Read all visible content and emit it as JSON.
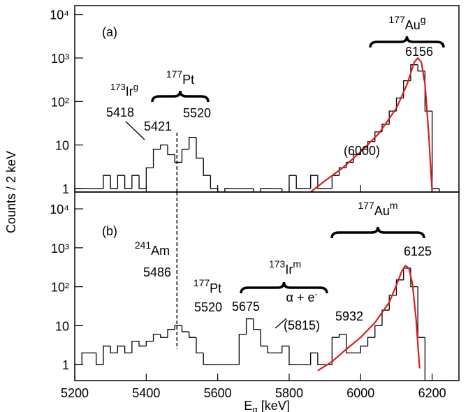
{
  "chart_data": [
    {
      "type": "histogram",
      "panel_label": "(a)",
      "ylabel": "Counts / 2 keV",
      "log_y": true,
      "color": "#000000",
      "xlim": [
        5200,
        6275
      ],
      "ylim": [
        0.83,
        16000
      ],
      "yticks": [
        1,
        10,
        {
          "value": 100,
          "label": "10²"
        },
        {
          "value": 1000,
          "label": "10³"
        },
        {
          "value": 10000,
          "label": "10⁴"
        }
      ],
      "bins": [
        5200,
        5220,
        5240,
        5260,
        5280,
        5300,
        5320,
        5340,
        5360,
        5380,
        5400,
        5420,
        5440,
        5460,
        5480,
        5500,
        5520,
        5540,
        5560,
        5580,
        5600,
        5620,
        5640,
        5660,
        5680,
        5700,
        5720,
        5740,
        5760,
        5780,
        5800,
        5820,
        5840,
        5860,
        5880,
        5900,
        5920,
        5940,
        5960,
        5980,
        6000,
        6020,
        6040,
        6060,
        6080,
        6100,
        6120,
        6140,
        6160,
        6180,
        6200,
        6220,
        6240,
        6260
      ],
      "counts": [
        1,
        1,
        1,
        1,
        2,
        1,
        2,
        1,
        2,
        1,
        3,
        8,
        10,
        6,
        4,
        8,
        15,
        5,
        2,
        1,
        0,
        1,
        1,
        1,
        1,
        0,
        1,
        1,
        1,
        0,
        2,
        1,
        1,
        2,
        1,
        1,
        2,
        3,
        4,
        6,
        8,
        12,
        20,
        30,
        60,
        120,
        300,
        700,
        500,
        60,
        1,
        0,
        0
      ],
      "fit": {
        "color": "#d62020",
        "x": [
          5860,
          5900,
          5950,
          6000,
          6050,
          6100,
          6130,
          6150,
          6160,
          6170,
          6180,
          6190,
          6200
        ],
        "values": [
          0.8,
          1.5,
          3,
          7,
          18,
          70,
          250,
          800,
          1000,
          800,
          250,
          20,
          0.8
        ]
      },
      "vline": 5486,
      "annotations": [
        {
          "text": "(a)"
        },
        {
          "left_sup": "177",
          "text": "Au",
          "sup": "g"
        },
        {
          "text": "6156"
        },
        {
          "left_sup": "177",
          "text": "Pt"
        },
        {
          "left_sup": "173",
          "text": "Ir",
          "sup": "g"
        },
        {
          "text": "5418"
        },
        {
          "text": "5421"
        },
        {
          "text": "5520"
        },
        {
          "text": "(6000)"
        }
      ]
    },
    {
      "type": "histogram",
      "panel_label": "(b)",
      "log_y": true,
      "color": "#000000",
      "xlim": [
        5200,
        6275
      ],
      "ylim": [
        0.39,
        27000
      ],
      "xticks": [
        5200,
        5400,
        5600,
        5800,
        6000,
        6200
      ],
      "xlabel": {
        "text": "E",
        "sub": "α",
        "after": " [keV]"
      },
      "yticks": [
        1,
        10,
        {
          "value": 100,
          "label": "10²"
        },
        {
          "value": 1000,
          "label": "10³"
        },
        {
          "value": 10000,
          "label": "10⁴"
        }
      ],
      "bins": [
        5200,
        5220,
        5240,
        5260,
        5280,
        5300,
        5320,
        5340,
        5360,
        5380,
        5400,
        5420,
        5440,
        5460,
        5480,
        5500,
        5520,
        5540,
        5560,
        5580,
        5600,
        5620,
        5640,
        5660,
        5680,
        5700,
        5720,
        5740,
        5760,
        5780,
        5800,
        5820,
        5840,
        5860,
        5880,
        5900,
        5920,
        5940,
        5960,
        5980,
        6000,
        6020,
        6040,
        6060,
        6080,
        6100,
        6120,
        6140,
        6160,
        6180,
        6200,
        6220,
        6240,
        6260
      ],
      "counts": [
        1,
        2,
        2,
        1,
        3,
        2,
        3,
        2,
        4,
        3,
        4,
        6,
        5,
        8,
        10,
        7,
        5,
        2,
        1,
        1,
        1,
        1,
        1,
        6,
        15,
        8,
        3,
        2,
        2,
        3,
        1,
        1,
        1,
        2,
        1,
        1,
        5,
        6,
        2,
        2,
        3,
        5,
        10,
        25,
        60,
        150,
        300,
        100,
        5,
        0,
        0,
        0,
        0
      ],
      "fit": {
        "color": "#d62020",
        "x": [
          5880,
          5920,
          5960,
          6000,
          6040,
          6080,
          6100,
          6115,
          6125,
          6135,
          6145,
          6155,
          6165
        ],
        "values": [
          0.7,
          1.2,
          2.5,
          5,
          12,
          40,
          110,
          250,
          350,
          300,
          120,
          15,
          0.8
        ]
      },
      "vline": 5486,
      "annotations": [
        {
          "text": "(b)"
        },
        {
          "left_sup": "177",
          "text": "Au",
          "sup": "m"
        },
        {
          "text": "6125"
        },
        {
          "left_sup": "241",
          "text": "Am"
        },
        {
          "text": "5486"
        },
        {
          "left_sup": "177",
          "text": "Pt"
        },
        {
          "text": "5520"
        },
        {
          "left_sup": "173",
          "text": "Ir",
          "sup": "m"
        },
        {
          "text": "α + e",
          "sup": "-"
        },
        {
          "text": "5675"
        },
        {
          "text": "(5815)"
        },
        {
          "text": "5932"
        }
      ]
    }
  ]
}
